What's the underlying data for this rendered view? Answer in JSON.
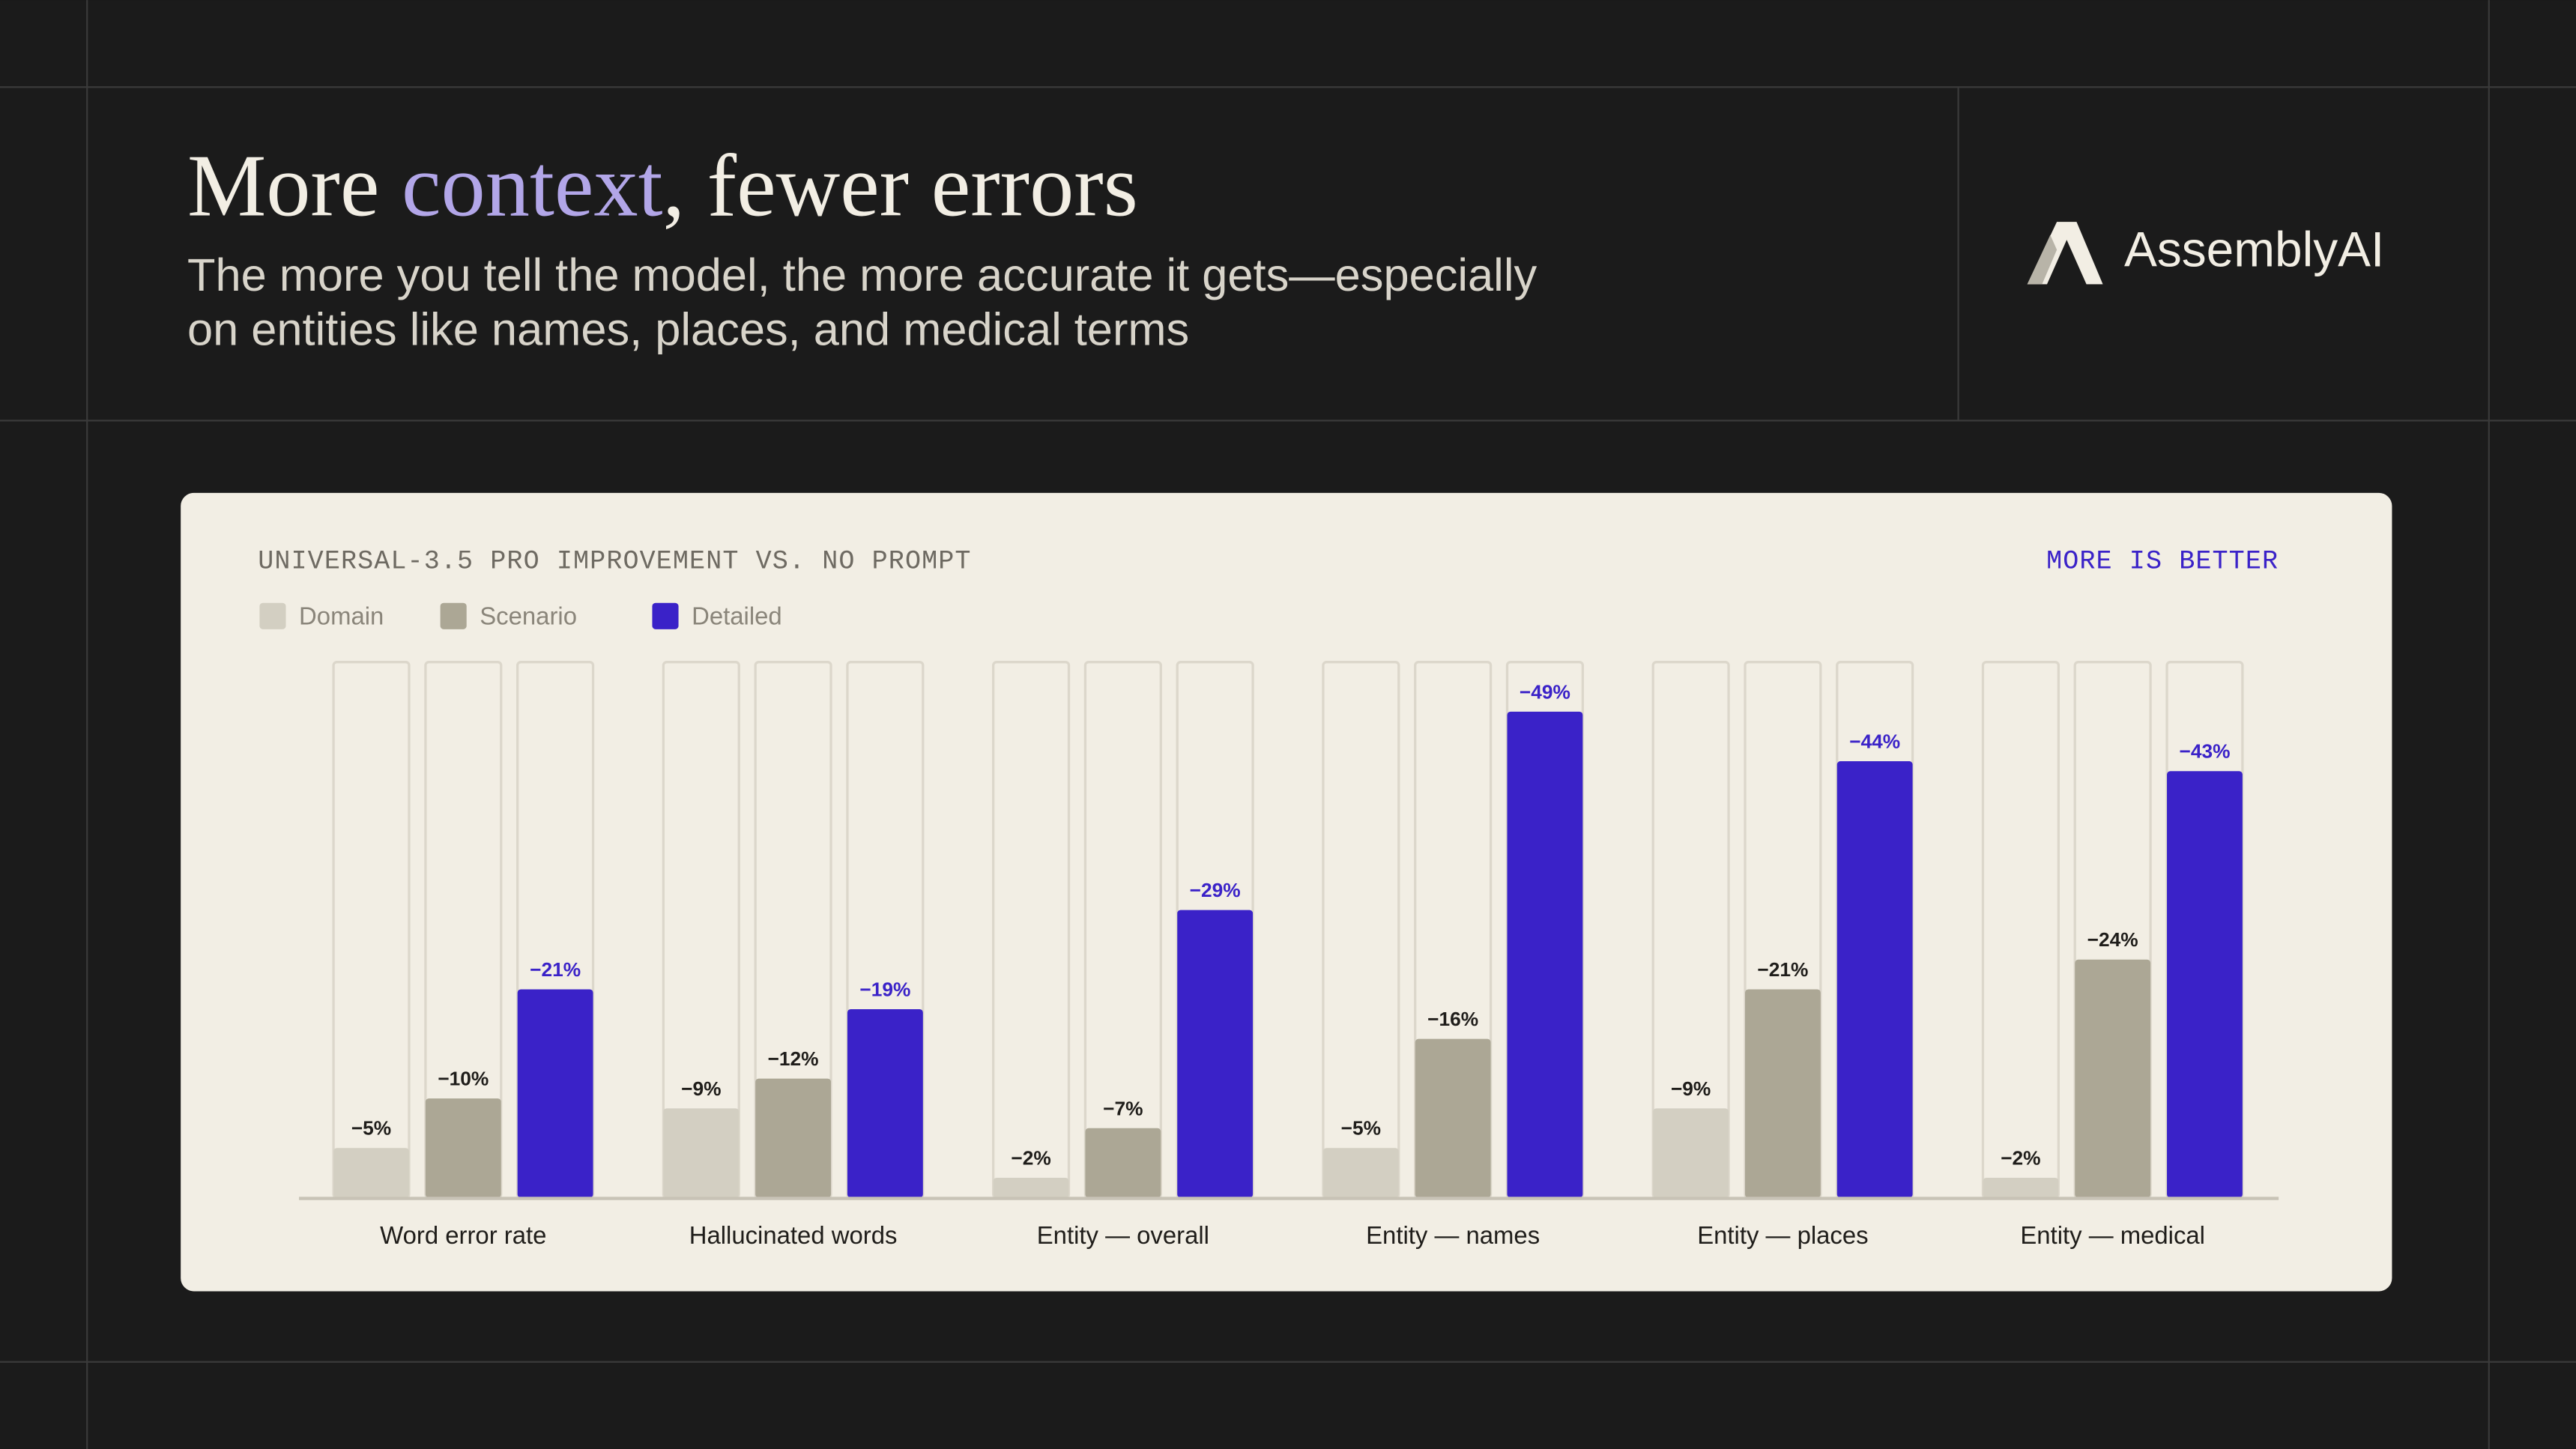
{
  "title": [
    "More ",
    "context",
    ", fewer errors"
  ],
  "subtitle": [
    "The more you tell the model, the more accurate it gets—especially",
    "on entities like names, places, and medical terms"
  ],
  "brand": "AssemblyAI",
  "chart_data": {
    "type": "bar",
    "title": "UNIVERSAL-3.5 PRO IMPROVEMENT VS. NO PROMPT",
    "annotation": "MORE IS BETTER",
    "categories": [
      "Word error rate",
      "Hallucinated words",
      "Entity — overall",
      "Entity — names",
      "Entity — places",
      "Entity — medical"
    ],
    "series": [
      {
        "name": "Domain",
        "color": "#d3cfc2",
        "values": [
          -5,
          -9,
          -2,
          -5,
          -9,
          -2
        ],
        "value_labels": [
          "−5%",
          "−9%",
          "−2%",
          "−5%",
          "−9%",
          "−2%"
        ]
      },
      {
        "name": "Scenario",
        "color": "#aca795",
        "values": [
          -10,
          -12,
          -7,
          -16,
          -21,
          -24
        ],
        "value_labels": [
          "−10%",
          "−12%",
          "−7%",
          "−16%",
          "−21%",
          "−24%"
        ]
      },
      {
        "name": "Detailed",
        "color": "#3a22c8",
        "values": [
          -21,
          -19,
          -29,
          -49,
          -44,
          -43
        ],
        "value_labels": [
          "−21%",
          "−19%",
          "−29%",
          "−49%",
          "−44%",
          "−43%"
        ]
      }
    ],
    "ylim": [
      0,
      -54
    ],
    "legend": "top-left"
  }
}
